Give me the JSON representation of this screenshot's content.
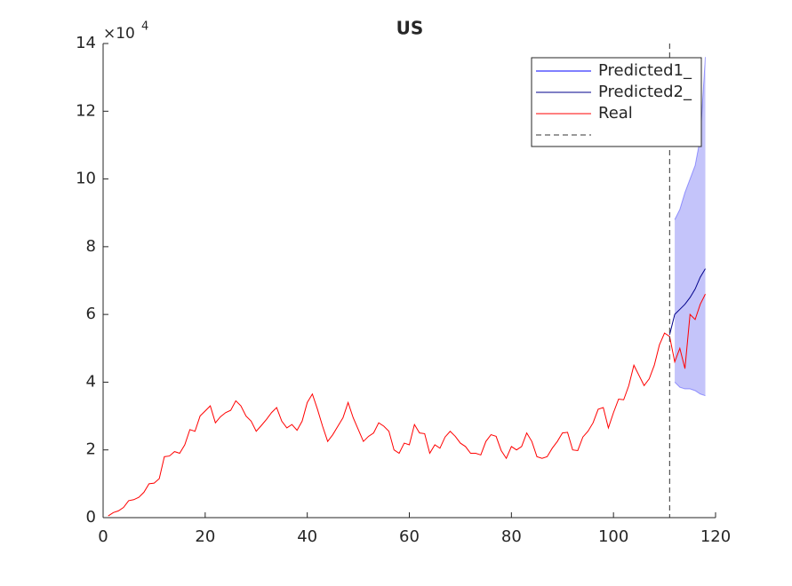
{
  "chart_data": {
    "type": "line",
    "title": "US",
    "y_exponent_base": "×10",
    "y_exponent_power": "4",
    "xlim": [
      0,
      120
    ],
    "xticks": [
      0,
      20,
      40,
      60,
      80,
      100,
      120
    ],
    "ylim": [
      0,
      140000
    ],
    "yticks": [
      {
        "value": 0,
        "label": "0"
      },
      {
        "value": 20000,
        "label": "2"
      },
      {
        "value": 40000,
        "label": "4"
      },
      {
        "value": 60000,
        "label": "6"
      },
      {
        "value": 80000,
        "label": "8"
      },
      {
        "value": 100000,
        "label": "10"
      },
      {
        "value": 120000,
        "label": "12"
      },
      {
        "value": 140000,
        "label": "14"
      }
    ],
    "vline_x": 111,
    "legend": "upper right",
    "series": [
      {
        "name": "Predicted1_",
        "color": "#0000ff",
        "fill": "#c4c4fa",
        "x": [
          112,
          113,
          114,
          115,
          116,
          117,
          118
        ],
        "upper": [
          88000,
          91000,
          96000,
          100000,
          104000,
          112000,
          136000
        ],
        "lower": [
          40000,
          38500,
          38000,
          38000,
          37500,
          36500,
          36000
        ]
      },
      {
        "name": "Predicted2_",
        "color": "#00008b",
        "x": [
          111,
          112,
          113,
          114,
          115,
          116,
          117,
          118
        ],
        "values": [
          54000,
          60000,
          61500,
          63000,
          65000,
          67500,
          71000,
          73500
        ]
      },
      {
        "name": "Real",
        "color": "#ff0000",
        "x": [
          1,
          2,
          3,
          4,
          5,
          6,
          7,
          8,
          9,
          10,
          11,
          12,
          13,
          14,
          15,
          16,
          17,
          18,
          19,
          20,
          21,
          22,
          23,
          24,
          25,
          26,
          27,
          28,
          29,
          30,
          31,
          32,
          33,
          34,
          35,
          36,
          37,
          38,
          39,
          40,
          41,
          42,
          43,
          44,
          45,
          46,
          47,
          48,
          49,
          50,
          51,
          52,
          53,
          54,
          55,
          56,
          57,
          58,
          59,
          60,
          61,
          62,
          63,
          64,
          65,
          66,
          67,
          68,
          69,
          70,
          71,
          72,
          73,
          74,
          75,
          76,
          77,
          78,
          79,
          80,
          81,
          82,
          83,
          84,
          85,
          86,
          87,
          88,
          89,
          90,
          91,
          92,
          93,
          94,
          95,
          96,
          97,
          98,
          99,
          100,
          101,
          102,
          103,
          104,
          105,
          106,
          107,
          108,
          109,
          110,
          111,
          112,
          113,
          114,
          115,
          116,
          117,
          118
        ],
        "values": [
          500,
          1500,
          2000,
          3000,
          5000,
          5300,
          6000,
          7500,
          10000,
          10200,
          11500,
          18000,
          18200,
          19500,
          19000,
          21500,
          26000,
          25500,
          30000,
          31500,
          33000,
          28000,
          29800,
          31000,
          31700,
          34500,
          33000,
          30000,
          28500,
          25500,
          27200,
          29000,
          31000,
          32500,
          28500,
          26500,
          27500,
          25800,
          28500,
          34000,
          36500,
          32000,
          27000,
          22500,
          24500,
          27000,
          29500,
          34000,
          29500,
          26000,
          22500,
          24000,
          25000,
          28000,
          27000,
          25500,
          20000,
          19000,
          22000,
          21500,
          27500,
          25000,
          24800,
          19000,
          21500,
          20500,
          23800,
          25500,
          24000,
          22000,
          21000,
          19000,
          19000,
          18500,
          22500,
          24500,
          24000,
          19800,
          17500,
          21000,
          20000,
          21000,
          25000,
          22500,
          18000,
          17500,
          18000,
          20500,
          22500,
          25000,
          25200,
          20000,
          19800,
          23800,
          25500,
          28000,
          32000,
          32500,
          26500,
          31000,
          35000,
          34800,
          39000,
          45000,
          42000,
          39000,
          41000,
          45000,
          51000,
          54500,
          53500,
          46000,
          50000,
          44000,
          60000,
          58500,
          63000,
          66000
        ]
      }
    ]
  }
}
